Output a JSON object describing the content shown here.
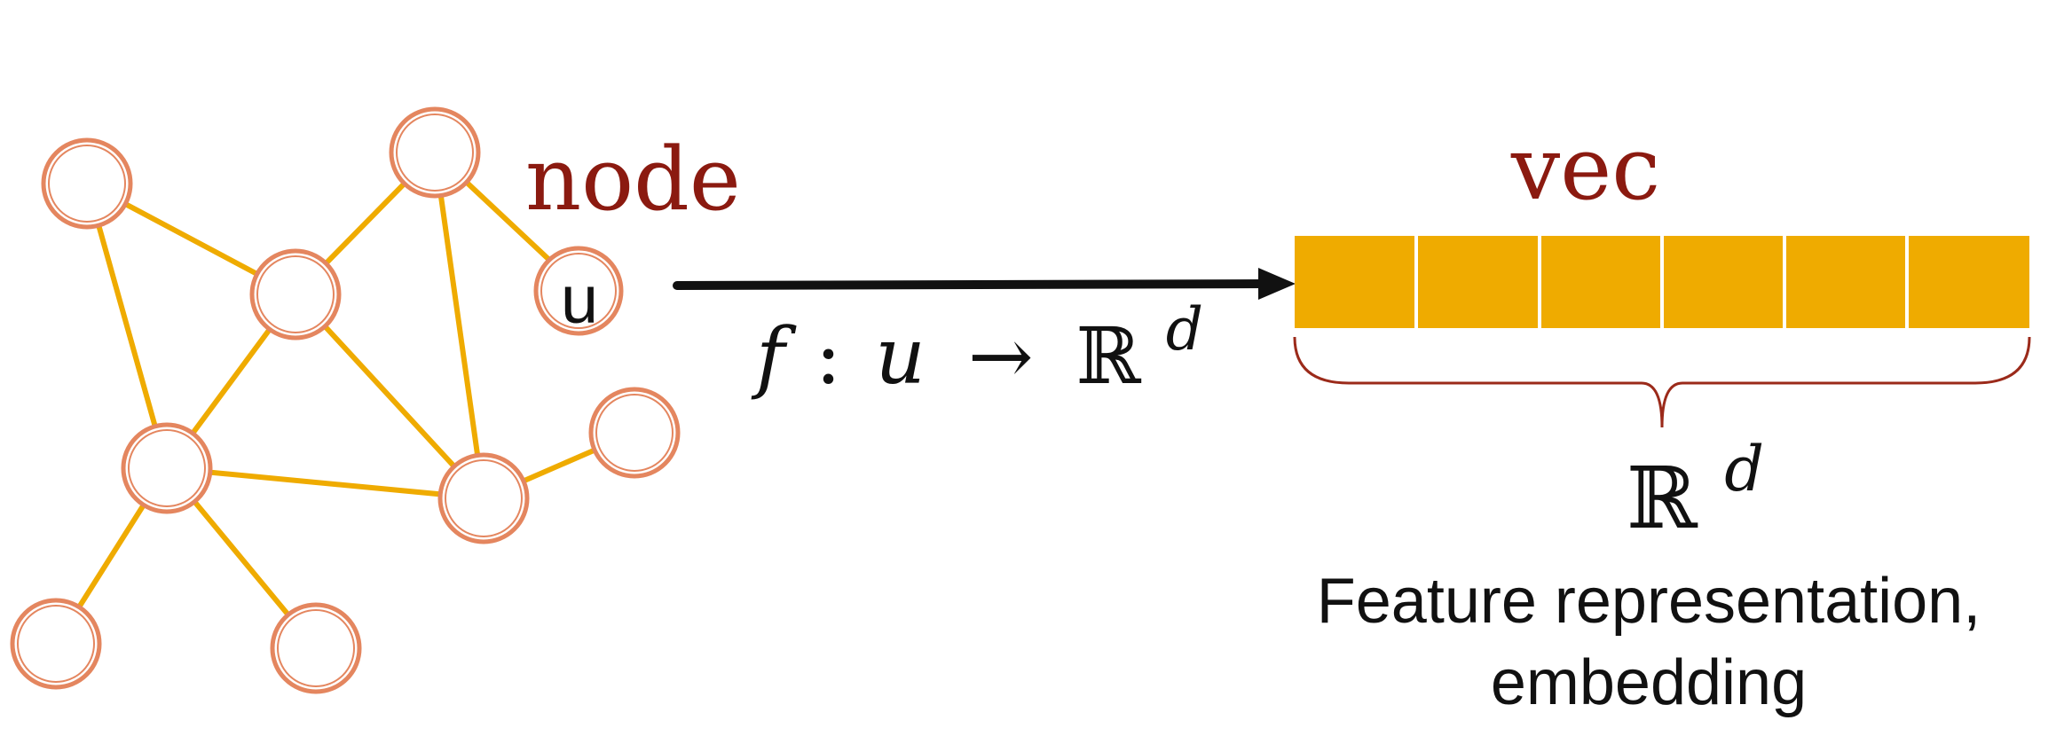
{
  "labels": {
    "node": "node",
    "vec": "vec",
    "u": "u",
    "map_f": "f",
    "map_colon": ":",
    "map_u": "u",
    "map_arrow": "→",
    "map_R": "ℝ",
    "map_d": "d",
    "space_R": "ℝ",
    "space_d": "d",
    "caption_line1": "Feature representation,",
    "caption_line2": "embedding"
  },
  "graph": {
    "nodes": [
      "n1",
      "n2",
      "n3",
      "u",
      "n5",
      "n6",
      "n7",
      "n8",
      "n9",
      "n10"
    ],
    "edges": [
      [
        "n1",
        "n3"
      ],
      [
        "n1",
        "n5"
      ],
      [
        "n3",
        "n2"
      ],
      [
        "n2",
        "u"
      ],
      [
        "n2",
        "n6"
      ],
      [
        "n3",
        "n5"
      ],
      [
        "n3",
        "n6"
      ],
      [
        "n5",
        "n6"
      ],
      [
        "n6",
        "n7"
      ],
      [
        "n5",
        "n8"
      ],
      [
        "n5",
        "n9"
      ]
    ]
  },
  "vector": {
    "cells": 6
  },
  "colors": {
    "label_red": "#8b1a10",
    "edge": "#efab00",
    "node_stroke": "#e4865f",
    "vector_fill": "#efab00",
    "brace": "#9b2a1a",
    "arrow": "#111111",
    "text": "#111111"
  }
}
